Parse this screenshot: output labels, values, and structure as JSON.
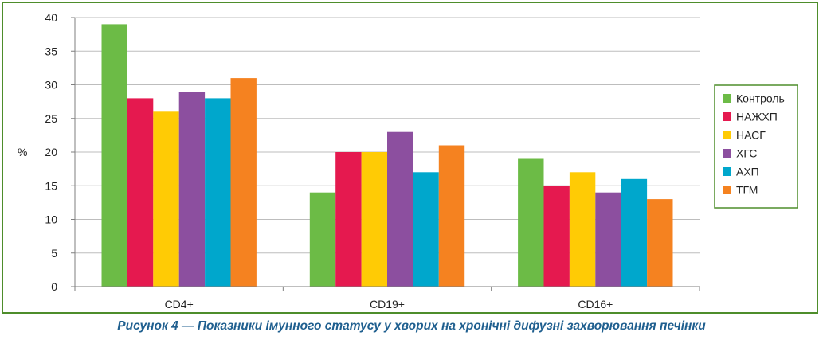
{
  "chart_data": {
    "type": "bar",
    "categories": [
      "CD4+",
      "CD19+",
      "CD16+"
    ],
    "ylabel": "%",
    "ylim": [
      0,
      40
    ],
    "yticks": [
      0,
      5,
      10,
      15,
      20,
      25,
      30,
      35,
      40
    ],
    "grid": true,
    "legend_position": "right",
    "series": [
      {
        "name": "Контроль",
        "color": "#6cbb46",
        "values": [
          39,
          14,
          19
        ]
      },
      {
        "name": "НАЖХП",
        "color": "#e5194f",
        "values": [
          28,
          20,
          15
        ]
      },
      {
        "name": "НАСГ",
        "color": "#ffcb05",
        "values": [
          26,
          20,
          17
        ]
      },
      {
        "name": "ХГС",
        "color": "#8c4f9f",
        "values": [
          29,
          23,
          14
        ]
      },
      {
        "name": "АХП",
        "color": "#00a7cc",
        "values": [
          28,
          17,
          16
        ]
      },
      {
        "name": "ТГМ",
        "color": "#f58220",
        "values": [
          31,
          21,
          13
        ]
      }
    ]
  },
  "caption": "Рисунок 4 — Показники імунного статусу у хворих на хронічні дифузні захворювання печінки"
}
